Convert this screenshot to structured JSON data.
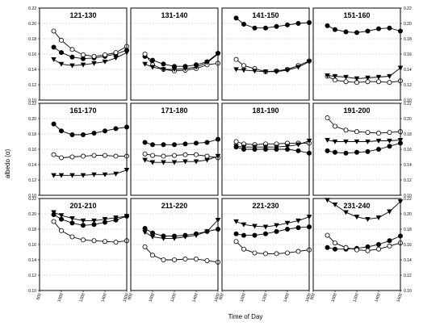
{
  "figure": {
    "ylabel": "albedo (α)",
    "xlabel": "Time of Day",
    "y_ticks": [
      "0.10",
      "0.12",
      "0.14",
      "0.16",
      "0.18",
      "0.20",
      "0.22"
    ],
    "x_ticks": [
      "800",
      "1000",
      "1200",
      "1400",
      "1600"
    ]
  },
  "chart_data": [
    {
      "type": "scatter",
      "title": "121-130",
      "ylim": [
        0.1,
        0.22
      ],
      "xlim": [
        800,
        1600
      ],
      "grid": "horizontal dotted",
      "x": [
        930,
        1000,
        1100,
        1200,
        1300,
        1400,
        1500,
        1600
      ],
      "series": [
        {
          "marker": "filled-circle",
          "values": [
            0.169,
            0.162,
            0.156,
            0.154,
            0.155,
            0.157,
            0.16,
            0.165
          ]
        },
        {
          "marker": "open-circle",
          "values": [
            0.19,
            0.178,
            0.166,
            0.159,
            0.157,
            0.159,
            0.162,
            0.17
          ]
        },
        {
          "marker": "filled-triangle",
          "values": [
            0.153,
            0.147,
            0.145,
            0.146,
            0.148,
            0.15,
            0.155,
            0.162
          ]
        }
      ]
    },
    {
      "type": "scatter",
      "title": "131-140",
      "ylim": [
        0.1,
        0.22
      ],
      "xlim": [
        800,
        1600
      ],
      "grid": "horizontal dotted",
      "x": [
        930,
        1000,
        1100,
        1200,
        1300,
        1400,
        1500,
        1600
      ],
      "series": [
        {
          "marker": "filled-circle",
          "values": [
            0.157,
            0.152,
            0.147,
            0.144,
            0.144,
            0.146,
            0.15,
            0.161
          ]
        },
        {
          "marker": "open-circle",
          "values": [
            0.16,
            0.146,
            0.14,
            0.138,
            0.139,
            0.141,
            0.146,
            0.148
          ]
        },
        {
          "marker": "filled-triangle",
          "values": [
            0.147,
            0.143,
            0.14,
            0.14,
            0.141,
            0.143,
            0.149,
            0.16
          ]
        }
      ]
    },
    {
      "type": "scatter",
      "title": "141-150",
      "ylim": [
        0.1,
        0.22
      ],
      "xlim": [
        800,
        1600
      ],
      "grid": "horizontal dotted",
      "x": [
        930,
        1000,
        1100,
        1200,
        1300,
        1400,
        1500,
        1600
      ],
      "series": [
        {
          "marker": "filled-circle",
          "values": [
            0.207,
            0.199,
            0.194,
            0.194,
            0.196,
            0.198,
            0.2,
            0.201
          ]
        },
        {
          "marker": "open-circle",
          "values": [
            0.153,
            0.145,
            0.141,
            0.137,
            0.138,
            0.14,
            0.145,
            0.151
          ]
        },
        {
          "marker": "filled-triangle",
          "values": [
            0.14,
            0.139,
            0.138,
            0.137,
            0.137,
            0.139,
            0.143,
            0.15
          ]
        }
      ]
    },
    {
      "type": "scatter",
      "title": "151-160",
      "ylim": [
        0.1,
        0.22
      ],
      "xlim": [
        800,
        1600
      ],
      "grid": "horizontal dotted",
      "x": [
        930,
        1000,
        1100,
        1200,
        1300,
        1400,
        1500,
        1600
      ],
      "series": [
        {
          "marker": "filled-circle",
          "values": [
            0.197,
            0.192,
            0.189,
            0.188,
            0.19,
            0.193,
            0.194,
            0.19
          ]
        },
        {
          "marker": "open-circle",
          "values": [
            0.131,
            0.126,
            0.124,
            0.123,
            0.124,
            0.124,
            0.123,
            0.125
          ]
        },
        {
          "marker": "filled-triangle",
          "values": [
            0.132,
            0.131,
            0.13,
            0.128,
            0.129,
            0.13,
            0.131,
            0.142
          ]
        }
      ]
    },
    {
      "type": "scatter",
      "title": "161-170",
      "ylim": [
        0.1,
        0.22
      ],
      "xlim": [
        800,
        1600
      ],
      "grid": "horizontal dotted",
      "x": [
        930,
        1000,
        1100,
        1200,
        1300,
        1400,
        1500,
        1600
      ],
      "series": [
        {
          "marker": "filled-circle",
          "values": [
            0.193,
            0.184,
            0.179,
            0.179,
            0.181,
            0.184,
            0.187,
            0.189
          ]
        },
        {
          "marker": "open-circle",
          "values": [
            0.153,
            0.149,
            0.15,
            0.151,
            0.152,
            0.152,
            0.151,
            0.151
          ]
        },
        {
          "marker": "filled-triangle",
          "values": [
            0.126,
            0.126,
            0.126,
            0.126,
            0.127,
            0.127,
            0.128,
            0.133
          ]
        }
      ]
    },
    {
      "type": "scatter",
      "title": "171-180",
      "ylim": [
        0.1,
        0.22
      ],
      "xlim": [
        800,
        1600
      ],
      "grid": "horizontal dotted",
      "x": [
        930,
        1000,
        1100,
        1200,
        1300,
        1400,
        1500,
        1600
      ],
      "series": [
        {
          "marker": "filled-circle",
          "values": [
            0.169,
            0.166,
            0.166,
            0.166,
            0.167,
            0.168,
            0.169,
            0.173
          ]
        },
        {
          "marker": "open-circle",
          "values": [
            0.154,
            0.152,
            0.151,
            0.152,
            0.153,
            0.153,
            0.151,
            0.149
          ]
        },
        {
          "marker": "filled-triangle",
          "values": [
            0.146,
            0.143,
            0.143,
            0.143,
            0.144,
            0.144,
            0.146,
            0.151
          ]
        }
      ]
    },
    {
      "type": "scatter",
      "title": "181-190",
      "ylim": [
        0.1,
        0.22
      ],
      "xlim": [
        800,
        1600
      ],
      "grid": "horizontal dotted",
      "x": [
        930,
        1000,
        1100,
        1200,
        1300,
        1400,
        1500,
        1600
      ],
      "series": [
        {
          "marker": "filled-circle",
          "values": [
            0.163,
            0.16,
            0.16,
            0.16,
            0.16,
            0.16,
            0.158,
            0.155
          ]
        },
        {
          "marker": "open-circle",
          "values": [
            0.17,
            0.167,
            0.166,
            0.167,
            0.167,
            0.168,
            0.168,
            0.168
          ]
        },
        {
          "marker": "filled-triangle",
          "values": [
            0.164,
            0.163,
            0.163,
            0.163,
            0.163,
            0.164,
            0.166,
            0.171
          ]
        }
      ]
    },
    {
      "type": "scatter",
      "title": "191-200",
      "ylim": [
        0.1,
        0.22
      ],
      "xlim": [
        800,
        1600
      ],
      "grid": "horizontal dotted",
      "x": [
        930,
        1000,
        1100,
        1200,
        1300,
        1400,
        1500,
        1600
      ],
      "series": [
        {
          "marker": "filled-circle",
          "values": [
            0.158,
            0.156,
            0.155,
            0.156,
            0.157,
            0.16,
            0.164,
            0.168
          ]
        },
        {
          "marker": "open-circle",
          "values": [
            0.201,
            0.19,
            0.185,
            0.183,
            0.182,
            0.181,
            0.182,
            0.183
          ]
        },
        {
          "marker": "filled-triangle",
          "values": [
            0.172,
            0.17,
            0.17,
            0.17,
            0.17,
            0.171,
            0.171,
            0.172
          ]
        }
      ]
    },
    {
      "type": "scatter",
      "title": "201-210",
      "ylim": [
        0.1,
        0.22
      ],
      "xlim": [
        800,
        1600
      ],
      "grid": "horizontal dotted",
      "x": [
        930,
        1000,
        1100,
        1200,
        1300,
        1400,
        1500,
        1600
      ],
      "series": [
        {
          "marker": "filled-circle",
          "values": [
            0.199,
            0.193,
            0.188,
            0.185,
            0.186,
            0.189,
            0.192,
            0.197
          ]
        },
        {
          "marker": "open-circle",
          "values": [
            0.19,
            0.178,
            0.17,
            0.166,
            0.165,
            0.164,
            0.163,
            0.165
          ]
        },
        {
          "marker": "filled-triangle",
          "values": [
            0.202,
            0.198,
            0.194,
            0.191,
            0.191,
            0.193,
            0.195,
            0.197
          ]
        }
      ]
    },
    {
      "type": "scatter",
      "title": "211-220",
      "ylim": [
        0.1,
        0.22
      ],
      "xlim": [
        800,
        1600
      ],
      "grid": "horizontal dotted",
      "x": [
        930,
        1000,
        1100,
        1200,
        1300,
        1400,
        1500,
        1600
      ],
      "series": [
        {
          "marker": "filled-circle",
          "values": [
            0.181,
            0.175,
            0.171,
            0.171,
            0.172,
            0.174,
            0.177,
            0.18
          ]
        },
        {
          "marker": "open-circle",
          "values": [
            0.157,
            0.146,
            0.14,
            0.14,
            0.141,
            0.141,
            0.139,
            0.137
          ]
        },
        {
          "marker": "filled-triangle",
          "values": [
            0.176,
            0.17,
            0.168,
            0.168,
            0.17,
            0.172,
            0.177,
            0.192
          ]
        }
      ]
    },
    {
      "type": "scatter",
      "title": "221-230",
      "ylim": [
        0.1,
        0.22
      ],
      "xlim": [
        800,
        1600
      ],
      "grid": "horizontal dotted",
      "x": [
        930,
        1000,
        1100,
        1200,
        1300,
        1400,
        1500,
        1600
      ],
      "series": [
        {
          "marker": "filled-circle",
          "values": [
            0.174,
            0.172,
            0.172,
            0.174,
            0.177,
            0.18,
            0.182,
            0.183
          ]
        },
        {
          "marker": "open-circle",
          "values": [
            0.164,
            0.154,
            0.149,
            0.148,
            0.148,
            0.149,
            0.151,
            0.153
          ]
        },
        {
          "marker": "filled-triangle",
          "values": [
            0.19,
            0.186,
            0.184,
            0.183,
            0.185,
            0.188,
            0.191,
            0.196
          ]
        }
      ]
    },
    {
      "type": "scatter",
      "title": "231-240",
      "ylim": [
        0.1,
        0.22
      ],
      "xlim": [
        800,
        1600
      ],
      "grid": "horizontal dotted",
      "x": [
        930,
        1000,
        1100,
        1200,
        1300,
        1400,
        1500,
        1600
      ],
      "series": [
        {
          "marker": "filled-circle",
          "values": [
            0.156,
            0.154,
            0.154,
            0.155,
            0.157,
            0.16,
            0.165,
            0.171
          ]
        },
        {
          "marker": "open-circle",
          "values": [
            0.172,
            0.162,
            0.156,
            0.153,
            0.152,
            0.154,
            0.158,
            0.162
          ]
        },
        {
          "marker": "filled-triangle",
          "values": [
            0.218,
            0.212,
            0.202,
            0.196,
            0.193,
            0.195,
            0.203,
            0.216
          ]
        }
      ]
    }
  ]
}
